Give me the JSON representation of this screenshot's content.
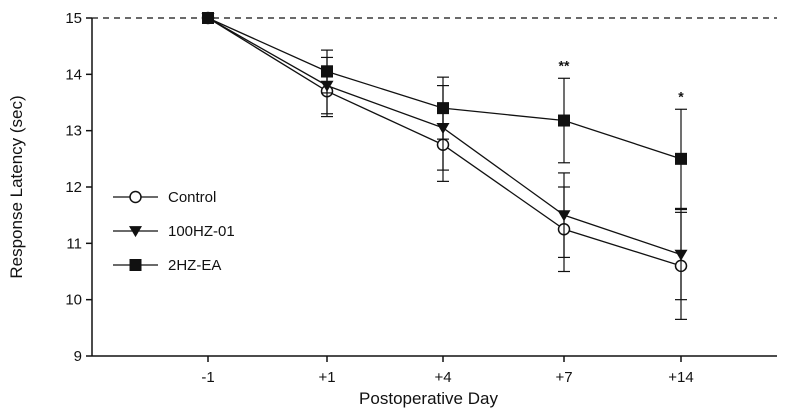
{
  "chart_data": {
    "type": "line",
    "xlabel": "Postoperative Day",
    "ylabel": "Response Latency (sec)",
    "categories": [
      "-1",
      "+1",
      "+4",
      "+7",
      "+14"
    ],
    "ylim": [
      9,
      15
    ],
    "yticks": [
      9,
      10,
      11,
      12,
      13,
      14,
      15
    ],
    "reference_line": {
      "y": 15,
      "style": "dashed"
    },
    "legend": {
      "placement": "left"
    },
    "series": [
      {
        "name": "Control",
        "marker": "open-circle",
        "values": [
          15,
          13.7,
          12.75,
          11.25,
          10.6
        ],
        "errors": [
          0,
          0.45,
          0.65,
          0.75,
          0.95
        ]
      },
      {
        "name": "100HZ-01",
        "marker": "filled-triangle-down",
        "values": [
          15,
          13.8,
          13.05,
          11.5,
          10.8
        ],
        "errors": [
          0,
          0.5,
          0.75,
          0.75,
          0.8
        ]
      },
      {
        "name": "2HZ-EA",
        "marker": "filled-square",
        "values": [
          15,
          14.05,
          13.4,
          13.18,
          12.5
        ],
        "errors": [
          0,
          0.38,
          0.55,
          0.75,
          0.88
        ]
      }
    ],
    "annotations": [
      {
        "category": "+7",
        "text": "**"
      },
      {
        "category": "+14",
        "text": "*"
      }
    ]
  }
}
